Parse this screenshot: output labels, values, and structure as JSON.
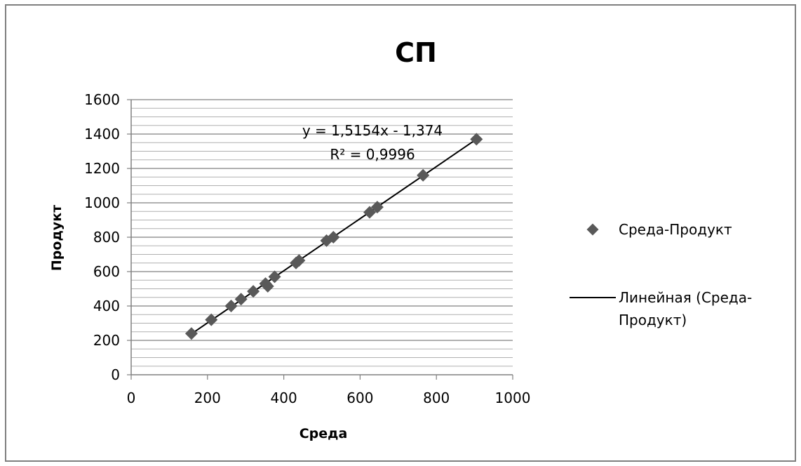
{
  "chart_data": {
    "type": "scatter",
    "title": "СП",
    "xlabel": "Среда",
    "ylabel": "Продукт",
    "xlim": [
      0,
      1000
    ],
    "ylim": [
      0,
      1600
    ],
    "x_ticks": [
      "0",
      "200",
      "400",
      "600",
      "800",
      "1000"
    ],
    "y_ticks": [
      "0",
      "200",
      "400",
      "600",
      "800",
      "1000",
      "1200",
      "1400",
      "1600"
    ],
    "y_major_step": 200,
    "y_minor_step": 50,
    "grid": "horizontal major and minor",
    "series": [
      {
        "name": "Среда-Продукт",
        "marker": "diamond",
        "color": "#595959",
        "x": [
          158,
          210,
          262,
          288,
          320,
          352,
          358,
          376,
          432,
          440,
          512,
          530,
          625,
          645,
          765,
          905
        ],
        "y": [
          240,
          320,
          400,
          440,
          485,
          530,
          515,
          570,
          650,
          665,
          780,
          800,
          945,
          975,
          1160,
          1370
        ]
      }
    ],
    "trendline": {
      "type": "linear",
      "name": "Линейная (Среда-Продукт)",
      "color": "#000000",
      "slope": 1.5154,
      "intercept": -1.374,
      "x_range": [
        158,
        905
      ],
      "equation": "y = 1,5154x - 1,374",
      "r2": "R² = 0,9996"
    },
    "legend": {
      "placement": "right",
      "marker_label": "Среда-Продукт",
      "line_label_1": "Линейная (Среда-",
      "line_label_2": "Продукт)"
    },
    "colors": {
      "frame": "#7f7f7f",
      "grid_major": "#808080",
      "grid_minor": "#b0b0b0",
      "axis": "#808080",
      "marker": "#595959"
    }
  }
}
